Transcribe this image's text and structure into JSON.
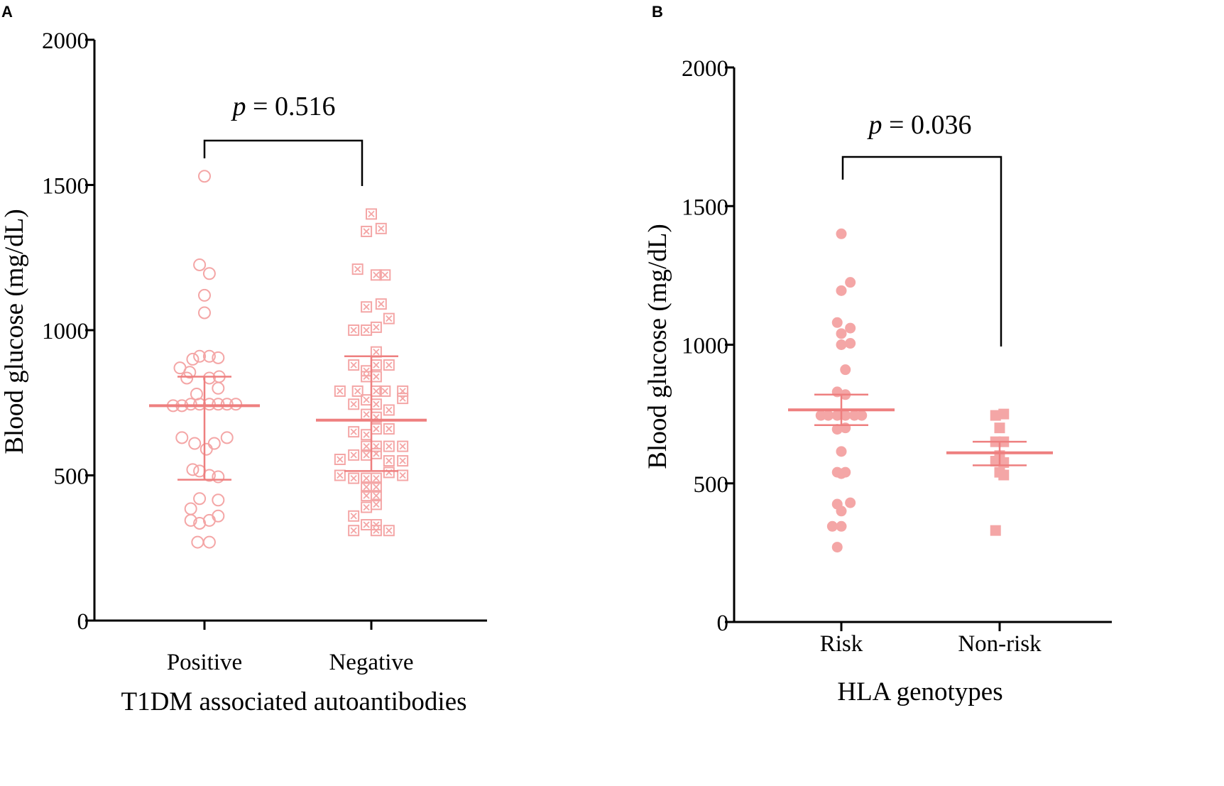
{
  "colors": {
    "point": "#f4a6a6",
    "summary": "#ee7f7f",
    "axis": "#000000"
  },
  "chart_data": [
    {
      "panel": "A",
      "type": "scatter",
      "ylabel": "Blood glucose (mg/dL)",
      "xlabel": "T1DM associated autoantibodies",
      "ylim": [
        0,
        2000
      ],
      "yticks": [
        "0",
        "500",
        "1000",
        "1500",
        "2000"
      ],
      "categories": [
        "Positive",
        "Negative"
      ],
      "pvalue": {
        "p": "p",
        "text": " = 0.516"
      },
      "series": [
        {
          "name": "Positive",
          "marker": "open-circle",
          "mean": 740,
          "upper": 840,
          "lower": 485,
          "points": [
            [
              0,
              1530
            ],
            [
              -0.05,
              1225
            ],
            [
              0.05,
              1195
            ],
            [
              0,
              1120
            ],
            [
              0,
              1060
            ],
            [
              -0.12,
              900
            ],
            [
              -0.05,
              910
            ],
            [
              0.05,
              910
            ],
            [
              0.14,
              905
            ],
            [
              -0.25,
              870
            ],
            [
              -0.15,
              855
            ],
            [
              0.15,
              840
            ],
            [
              -0.18,
              835
            ],
            [
              0.05,
              835
            ],
            [
              -0.08,
              780
            ],
            [
              0.14,
              800
            ],
            [
              -0.32,
              740
            ],
            [
              -0.23,
              740
            ],
            [
              -0.14,
              745
            ],
            [
              -0.05,
              745
            ],
            [
              0.05,
              745
            ],
            [
              0.14,
              745
            ],
            [
              0.23,
              745
            ],
            [
              0.32,
              745
            ],
            [
              -0.23,
              630
            ],
            [
              0.23,
              630
            ],
            [
              0.1,
              610
            ],
            [
              -0.1,
              610
            ],
            [
              0.02,
              590
            ],
            [
              -0.12,
              520
            ],
            [
              -0.05,
              515
            ],
            [
              0.05,
              500
            ],
            [
              0.14,
              495
            ],
            [
              -0.05,
              420
            ],
            [
              0.14,
              415
            ],
            [
              -0.14,
              385
            ],
            [
              0.14,
              360
            ],
            [
              -0.14,
              345
            ],
            [
              -0.05,
              335
            ],
            [
              0.05,
              345
            ],
            [
              -0.07,
              270
            ],
            [
              0.05,
              270
            ]
          ]
        },
        {
          "name": "Negative",
          "marker": "crossed-square",
          "mean": 690,
          "upper": 910,
          "lower": 515,
          "points": [
            [
              0,
              1400
            ],
            [
              -0.05,
              1340
            ],
            [
              0.1,
              1350
            ],
            [
              -0.14,
              1210
            ],
            [
              0.05,
              1190
            ],
            [
              0.14,
              1190
            ],
            [
              -0.05,
              1080
            ],
            [
              0.1,
              1090
            ],
            [
              -0.05,
              1000
            ],
            [
              0.05,
              1010
            ],
            [
              -0.18,
              1000
            ],
            [
              0.18,
              1040
            ],
            [
              0.05,
              925
            ],
            [
              -0.18,
              880
            ],
            [
              -0.05,
              860
            ],
            [
              0.05,
              880
            ],
            [
              0.18,
              880
            ],
            [
              -0.05,
              840
            ],
            [
              0.05,
              840
            ],
            [
              -0.32,
              790
            ],
            [
              -0.14,
              790
            ],
            [
              -0.05,
              760
            ],
            [
              0.05,
              790
            ],
            [
              0.14,
              790
            ],
            [
              0.32,
              790
            ],
            [
              0.32,
              765
            ],
            [
              -0.18,
              745
            ],
            [
              0.05,
              745
            ],
            [
              0.18,
              725
            ],
            [
              -0.05,
              710
            ],
            [
              0.05,
              700
            ],
            [
              -0.18,
              650
            ],
            [
              -0.05,
              640
            ],
            [
              0.05,
              660
            ],
            [
              0.18,
              660
            ],
            [
              -0.05,
              600
            ],
            [
              0.05,
              600
            ],
            [
              0.18,
              600
            ],
            [
              0.32,
              600
            ],
            [
              -0.32,
              555
            ],
            [
              -0.18,
              570
            ],
            [
              -0.05,
              570
            ],
            [
              0.05,
              575
            ],
            [
              0.18,
              550
            ],
            [
              0.32,
              550
            ],
            [
              -0.32,
              500
            ],
            [
              -0.18,
              490
            ],
            [
              -0.05,
              490
            ],
            [
              0.05,
              490
            ],
            [
              0.18,
              510
            ],
            [
              0.32,
              500
            ],
            [
              -0.05,
              460
            ],
            [
              0.05,
              460
            ],
            [
              -0.05,
              430
            ],
            [
              0.05,
              430
            ],
            [
              -0.05,
              390
            ],
            [
              0.05,
              400
            ],
            [
              -0.18,
              360
            ],
            [
              -0.05,
              330
            ],
            [
              0.05,
              330
            ],
            [
              -0.18,
              310
            ],
            [
              0.05,
              310
            ],
            [
              0.18,
              310
            ]
          ]
        }
      ]
    },
    {
      "panel": "B",
      "type": "scatter",
      "ylabel": "Blood glucose (mg/dL)",
      "xlabel": "HLA genotypes",
      "ylim": [
        0,
        2000
      ],
      "yticks": [
        "0",
        "500",
        "1000",
        "1500",
        "2000"
      ],
      "categories": [
        "Risk",
        "Non-risk"
      ],
      "pvalue": {
        "p": "p",
        "text": " = 0.036"
      },
      "series": [
        {
          "name": "Risk",
          "marker": "filled-circle",
          "mean": 765,
          "upper": 820,
          "lower": 710,
          "points": [
            [
              0,
              1400
            ],
            [
              0,
              1195
            ],
            [
              0.11,
              1225
            ],
            [
              -0.05,
              1080
            ],
            [
              0,
              1040
            ],
            [
              0.11,
              1060
            ],
            [
              0,
              1000
            ],
            [
              0.11,
              1005
            ],
            [
              0.05,
              910
            ],
            [
              -0.05,
              830
            ],
            [
              0.05,
              820
            ],
            [
              -0.25,
              745
            ],
            [
              -0.16,
              745
            ],
            [
              -0.05,
              745
            ],
            [
              0.05,
              745
            ],
            [
              0.16,
              745
            ],
            [
              0.25,
              745
            ],
            [
              -0.05,
              695
            ],
            [
              0.05,
              700
            ],
            [
              0,
              615
            ],
            [
              -0.05,
              540
            ],
            [
              0.05,
              540
            ],
            [
              0,
              535
            ],
            [
              -0.05,
              425
            ],
            [
              0.11,
              430
            ],
            [
              0,
              400
            ],
            [
              -0.11,
              345
            ],
            [
              0,
              345
            ],
            [
              -0.05,
              270
            ]
          ]
        },
        {
          "name": "Non-risk",
          "marker": "filled-square",
          "mean": 610,
          "upper": 650,
          "lower": 565,
          "points": [
            [
              -0.05,
              745
            ],
            [
              0.05,
              750
            ],
            [
              0,
              700
            ],
            [
              -0.05,
              650
            ],
            [
              0.05,
              650
            ],
            [
              0,
              600
            ],
            [
              -0.05,
              580
            ],
            [
              0.05,
              575
            ],
            [
              0,
              540
            ],
            [
              0.05,
              530
            ],
            [
              -0.05,
              330
            ]
          ]
        }
      ]
    }
  ]
}
